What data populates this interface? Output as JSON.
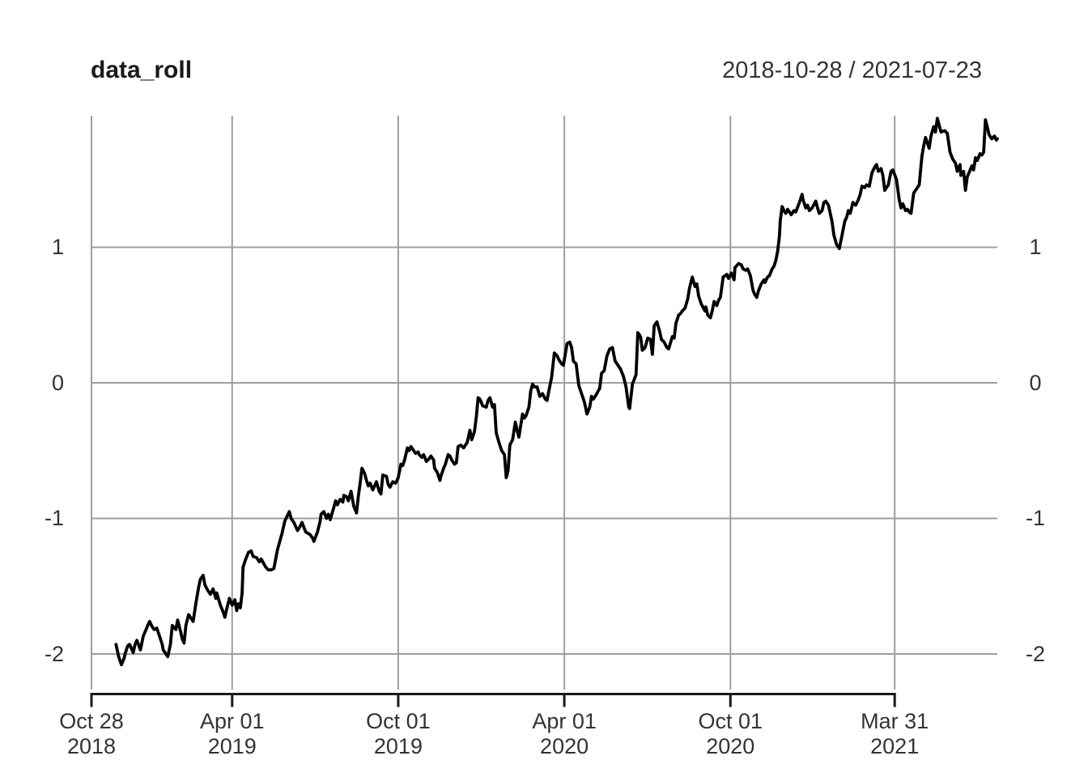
{
  "chart_data": {
    "type": "line",
    "title": "data_roll",
    "subtitle_right": "2018-10-28 / 2021-07-23",
    "x_start_date": "2018-10-28",
    "x_end_date": "2021-07-23",
    "xlim_days": [
      0,
      999
    ],
    "ylim": [
      -2.263,
      1.97
    ],
    "grid_on": true,
    "legend_position": "none",
    "line_color": "#000000",
    "grid_color": "#9e9e9e",
    "axis_color": "#1a1a1a",
    "y_ticks": [
      {
        "value": 1,
        "label": "1"
      },
      {
        "value": 0,
        "label": "0"
      },
      {
        "value": -1,
        "label": "-1"
      },
      {
        "value": -2,
        "label": "-2"
      }
    ],
    "x_ticks": [
      {
        "day": 0,
        "line1": "Oct 28",
        "line2": "2018"
      },
      {
        "day": 155,
        "line1": "Apr 01",
        "line2": "2019"
      },
      {
        "day": 338,
        "line1": "Oct 01",
        "line2": "2019"
      },
      {
        "day": 521,
        "line1": "Apr 01",
        "line2": "2020"
      },
      {
        "day": 704,
        "line1": "Oct 01",
        "line2": "2020"
      },
      {
        "day": 885,
        "line1": "Mar 31",
        "line2": "2021"
      }
    ],
    "points": [
      [
        27,
        -1.93
      ],
      [
        30,
        -2.02
      ],
      [
        33,
        -2.08
      ],
      [
        36,
        -2.03
      ],
      [
        37,
        -2.0
      ],
      [
        40,
        -1.94
      ],
      [
        42,
        -1.93
      ],
      [
        46,
        -1.99
      ],
      [
        48,
        -1.93
      ],
      [
        50,
        -1.9
      ],
      [
        54,
        -1.97
      ],
      [
        57,
        -1.87
      ],
      [
        62,
        -1.79
      ],
      [
        64,
        -1.76
      ],
      [
        67,
        -1.8
      ],
      [
        69,
        -1.82
      ],
      [
        72,
        -1.81
      ],
      [
        75,
        -1.87
      ],
      [
        78,
        -1.93
      ],
      [
        79,
        -1.97
      ],
      [
        84,
        -2.02
      ],
      [
        87,
        -1.93
      ],
      [
        89,
        -1.79
      ],
      [
        93,
        -1.82
      ],
      [
        95,
        -1.75
      ],
      [
        98,
        -1.83
      ],
      [
        100,
        -1.89
      ],
      [
        102,
        -1.92
      ],
      [
        104,
        -1.79
      ],
      [
        107,
        -1.71
      ],
      [
        112,
        -1.76
      ],
      [
        115,
        -1.63
      ],
      [
        118,
        -1.51
      ],
      [
        120,
        -1.45
      ],
      [
        123,
        -1.42
      ],
      [
        125,
        -1.49
      ],
      [
        128,
        -1.53
      ],
      [
        131,
        -1.56
      ],
      [
        134,
        -1.52
      ],
      [
        137,
        -1.59
      ],
      [
        138,
        -1.55
      ],
      [
        142,
        -1.64
      ],
      [
        145,
        -1.69
      ],
      [
        147,
        -1.73
      ],
      [
        149,
        -1.67
      ],
      [
        152,
        -1.59
      ],
      [
        155,
        -1.64
      ],
      [
        158,
        -1.6
      ],
      [
        160,
        -1.68
      ],
      [
        162,
        -1.63
      ],
      [
        164,
        -1.66
      ],
      [
        166,
        -1.55
      ],
      [
        167,
        -1.36
      ],
      [
        170,
        -1.3
      ],
      [
        173,
        -1.25
      ],
      [
        176,
        -1.24
      ],
      [
        178,
        -1.28
      ],
      [
        182,
        -1.29
      ],
      [
        185,
        -1.32
      ],
      [
        187,
        -1.3
      ],
      [
        192,
        -1.36
      ],
      [
        195,
        -1.38
      ],
      [
        198,
        -1.38
      ],
      [
        201,
        -1.37
      ],
      [
        205,
        -1.23
      ],
      [
        210,
        -1.11
      ],
      [
        213,
        -1.02
      ],
      [
        218,
        -0.95
      ],
      [
        220,
        -1.0
      ],
      [
        223,
        -1.03
      ],
      [
        227,
        -1.09
      ],
      [
        229,
        -1.07
      ],
      [
        232,
        -1.03
      ],
      [
        236,
        -1.1
      ],
      [
        241,
        -1.12
      ],
      [
        244,
        -1.15
      ],
      [
        245,
        -1.17
      ],
      [
        249,
        -1.1
      ],
      [
        252,
        -1.02
      ],
      [
        253,
        -0.97
      ],
      [
        256,
        -0.95
      ],
      [
        259,
        -1.0
      ],
      [
        261,
        -0.97
      ],
      [
        263,
        -1.01
      ],
      [
        267,
        -0.92
      ],
      [
        269,
        -0.87
      ],
      [
        271,
        -0.9
      ],
      [
        274,
        -0.86
      ],
      [
        277,
        -0.88
      ],
      [
        278,
        -0.83
      ],
      [
        281,
        -0.84
      ],
      [
        283,
        -0.87
      ],
      [
        286,
        -0.8
      ],
      [
        289,
        -0.91
      ],
      [
        292,
        -0.96
      ],
      [
        294,
        -0.84
      ],
      [
        296,
        -0.74
      ],
      [
        298,
        -0.63
      ],
      [
        301,
        -0.67
      ],
      [
        303,
        -0.72
      ],
      [
        305,
        -0.76
      ],
      [
        307,
        -0.74
      ],
      [
        310,
        -0.79
      ],
      [
        312,
        -0.76
      ],
      [
        314,
        -0.73
      ],
      [
        317,
        -0.8
      ],
      [
        319,
        -0.82
      ],
      [
        321,
        -0.68
      ],
      [
        325,
        -0.69
      ],
      [
        327,
        -0.75
      ],
      [
        329,
        -0.77
      ],
      [
        332,
        -0.73
      ],
      [
        335,
        -0.74
      ],
      [
        336,
        -0.73
      ],
      [
        338,
        -0.7
      ],
      [
        341,
        -0.6
      ],
      [
        343,
        -0.61
      ],
      [
        345,
        -0.57
      ],
      [
        348,
        -0.48
      ],
      [
        350,
        -0.5
      ],
      [
        352,
        -0.47
      ],
      [
        354,
        -0.49
      ],
      [
        357,
        -0.52
      ],
      [
        360,
        -0.51
      ],
      [
        361,
        -0.53
      ],
      [
        364,
        -0.55
      ],
      [
        366,
        -0.53
      ],
      [
        369,
        -0.58
      ],
      [
        372,
        -0.56
      ],
      [
        374,
        -0.54
      ],
      [
        377,
        -0.57
      ],
      [
        378,
        -0.63
      ],
      [
        381,
        -0.66
      ],
      [
        384,
        -0.72
      ],
      [
        385,
        -0.69
      ],
      [
        388,
        -0.63
      ],
      [
        390,
        -0.6
      ],
      [
        393,
        -0.53
      ],
      [
        395,
        -0.54
      ],
      [
        397,
        -0.57
      ],
      [
        400,
        -0.6
      ],
      [
        402,
        -0.59
      ],
      [
        404,
        -0.47
      ],
      [
        407,
        -0.46
      ],
      [
        410,
        -0.48
      ],
      [
        411,
        -0.47
      ],
      [
        414,
        -0.44
      ],
      [
        417,
        -0.35
      ],
      [
        419,
        -0.42
      ],
      [
        422,
        -0.36
      ],
      [
        424,
        -0.25
      ],
      [
        426,
        -0.11
      ],
      [
        428,
        -0.12
      ],
      [
        431,
        -0.17
      ],
      [
        435,
        -0.18
      ],
      [
        437,
        -0.13
      ],
      [
        439,
        -0.11
      ],
      [
        442,
        -0.18
      ],
      [
        444,
        -0.16
      ],
      [
        446,
        -0.37
      ],
      [
        449,
        -0.44
      ],
      [
        452,
        -0.5
      ],
      [
        455,
        -0.53
      ],
      [
        457,
        -0.7
      ],
      [
        459,
        -0.65
      ],
      [
        461,
        -0.46
      ],
      [
        464,
        -0.42
      ],
      [
        467,
        -0.29
      ],
      [
        469,
        -0.35
      ],
      [
        471,
        -0.4
      ],
      [
        475,
        -0.23
      ],
      [
        477,
        -0.26
      ],
      [
        479,
        -0.24
      ],
      [
        482,
        -0.18
      ],
      [
        484,
        -0.06
      ],
      [
        486,
        -0.01
      ],
      [
        488,
        -0.03
      ],
      [
        491,
        -0.03
      ],
      [
        494,
        -0.1
      ],
      [
        497,
        -0.08
      ],
      [
        500,
        -0.12
      ],
      [
        502,
        -0.13
      ],
      [
        504,
        -0.06
      ],
      [
        507,
        0.04
      ],
      [
        510,
        0.22
      ],
      [
        513,
        0.2
      ],
      [
        515,
        0.17
      ],
      [
        518,
        0.14
      ],
      [
        520,
        0.13
      ],
      [
        524,
        0.29
      ],
      [
        527,
        0.3
      ],
      [
        529,
        0.26
      ],
      [
        531,
        0.16
      ],
      [
        534,
        0.14
      ],
      [
        537,
        -0.02
      ],
      [
        540,
        -0.08
      ],
      [
        543,
        -0.14
      ],
      [
        546,
        -0.23
      ],
      [
        549,
        -0.18
      ],
      [
        551,
        -0.1
      ],
      [
        553,
        -0.12
      ],
      [
        556,
        -0.09
      ],
      [
        560,
        -0.04
      ],
      [
        562,
        0.07
      ],
      [
        565,
        0.09
      ],
      [
        568,
        0.2
      ],
      [
        571,
        0.25
      ],
      [
        574,
        0.26
      ],
      [
        577,
        0.16
      ],
      [
        580,
        0.13
      ],
      [
        583,
        0.1
      ],
      [
        586,
        0.05
      ],
      [
        589,
        -0.03
      ],
      [
        592,
        -0.18
      ],
      [
        593,
        -0.19
      ],
      [
        596,
        -0.01
      ],
      [
        600,
        0.06
      ],
      [
        602,
        0.37
      ],
      [
        605,
        0.34
      ],
      [
        607,
        0.24
      ],
      [
        610,
        0.26
      ],
      [
        613,
        0.33
      ],
      [
        616,
        0.32
      ],
      [
        618,
        0.21
      ],
      [
        620,
        0.42
      ],
      [
        623,
        0.45
      ],
      [
        626,
        0.38
      ],
      [
        628,
        0.32
      ],
      [
        631,
        0.3
      ],
      [
        634,
        0.26
      ],
      [
        636,
        0.25
      ],
      [
        640,
        0.34
      ],
      [
        642,
        0.33
      ],
      [
        644,
        0.44
      ],
      [
        647,
        0.5
      ],
      [
        649,
        0.51
      ],
      [
        651,
        0.53
      ],
      [
        654,
        0.55
      ],
      [
        657,
        0.62
      ],
      [
        659,
        0.7
      ],
      [
        662,
        0.78
      ],
      [
        665,
        0.71
      ],
      [
        667,
        0.73
      ],
      [
        669,
        0.64
      ],
      [
        672,
        0.58
      ],
      [
        676,
        0.53
      ],
      [
        677,
        0.56
      ],
      [
        679,
        0.5
      ],
      [
        682,
        0.48
      ],
      [
        684,
        0.53
      ],
      [
        686,
        0.6
      ],
      [
        689,
        0.57
      ],
      [
        691,
        0.61
      ],
      [
        693,
        0.63
      ],
      [
        696,
        0.78
      ],
      [
        700,
        0.8
      ],
      [
        702,
        0.77
      ],
      [
        705,
        0.81
      ],
      [
        708,
        0.76
      ],
      [
        709,
        0.85
      ],
      [
        713,
        0.88
      ],
      [
        716,
        0.87
      ],
      [
        718,
        0.84
      ],
      [
        721,
        0.83
      ],
      [
        723,
        0.84
      ],
      [
        726,
        0.79
      ],
      [
        729,
        0.68
      ],
      [
        731,
        0.65
      ],
      [
        733,
        0.63
      ],
      [
        735,
        0.68
      ],
      [
        738,
        0.73
      ],
      [
        741,
        0.76
      ],
      [
        742,
        0.74
      ],
      [
        745,
        0.78
      ],
      [
        747,
        0.79
      ],
      [
        750,
        0.84
      ],
      [
        752,
        0.86
      ],
      [
        754,
        0.9
      ],
      [
        756,
        0.97
      ],
      [
        758,
        1.08
      ],
      [
        759,
        1.2
      ],
      [
        761,
        1.3
      ],
      [
        763,
        1.27
      ],
      [
        765,
        1.25
      ],
      [
        767,
        1.28
      ],
      [
        771,
        1.24
      ],
      [
        774,
        1.27
      ],
      [
        776,
        1.26
      ],
      [
        780,
        1.33
      ],
      [
        783,
        1.39
      ],
      [
        784,
        1.35
      ],
      [
        787,
        1.29
      ],
      [
        789,
        1.31
      ],
      [
        791,
        1.27
      ],
      [
        794,
        1.29
      ],
      [
        798,
        1.34
      ],
      [
        800,
        1.29
      ],
      [
        802,
        1.25
      ],
      [
        805,
        1.27
      ],
      [
        807,
        1.33
      ],
      [
        809,
        1.34
      ],
      [
        812,
        1.31
      ],
      [
        816,
        1.19
      ],
      [
        818,
        1.09
      ],
      [
        821,
        1.02
      ],
      [
        824,
        0.99
      ],
      [
        827,
        1.09
      ],
      [
        830,
        1.19
      ],
      [
        832,
        1.22
      ],
      [
        834,
        1.27
      ],
      [
        836,
        1.25
      ],
      [
        839,
        1.33
      ],
      [
        842,
        1.31
      ],
      [
        845,
        1.35
      ],
      [
        847,
        1.39
      ],
      [
        849,
        1.45
      ],
      [
        852,
        1.44
      ],
      [
        854,
        1.46
      ],
      [
        857,
        1.45
      ],
      [
        860,
        1.55
      ],
      [
        863,
        1.59
      ],
      [
        865,
        1.61
      ],
      [
        867,
        1.56
      ],
      [
        870,
        1.58
      ],
      [
        872,
        1.53
      ],
      [
        874,
        1.42
      ],
      [
        878,
        1.46
      ],
      [
        881,
        1.56
      ],
      [
        883,
        1.57
      ],
      [
        887,
        1.5
      ],
      [
        890,
        1.35
      ],
      [
        892,
        1.29
      ],
      [
        894,
        1.32
      ],
      [
        897,
        1.27
      ],
      [
        899,
        1.28
      ],
      [
        901,
        1.26
      ],
      [
        903,
        1.25
      ],
      [
        906,
        1.4
      ],
      [
        909,
        1.43
      ],
      [
        912,
        1.46
      ],
      [
        915,
        1.67
      ],
      [
        917,
        1.75
      ],
      [
        919,
        1.81
      ],
      [
        923,
        1.73
      ],
      [
        925,
        1.82
      ],
      [
        928,
        1.89
      ],
      [
        930,
        1.85
      ],
      [
        932,
        1.95
      ],
      [
        936,
        1.85
      ],
      [
        940,
        1.86
      ],
      [
        943,
        1.84
      ],
      [
        946,
        1.7
      ],
      [
        949,
        1.65
      ],
      [
        952,
        1.62
      ],
      [
        954,
        1.56
      ],
      [
        957,
        1.61
      ],
      [
        958,
        1.53
      ],
      [
        961,
        1.56
      ],
      [
        963,
        1.42
      ],
      [
        965,
        1.52
      ],
      [
        967,
        1.55
      ],
      [
        970,
        1.6
      ],
      [
        972,
        1.57
      ],
      [
        974,
        1.66
      ],
      [
        976,
        1.64
      ],
      [
        979,
        1.69
      ],
      [
        981,
        1.68
      ],
      [
        983,
        1.7
      ],
      [
        985,
        1.94
      ],
      [
        987,
        1.89
      ],
      [
        989,
        1.83
      ],
      [
        990,
        1.82
      ],
      [
        992,
        1.8
      ],
      [
        995,
        1.82
      ],
      [
        997,
        1.79
      ],
      [
        998,
        1.8
      ]
    ]
  }
}
